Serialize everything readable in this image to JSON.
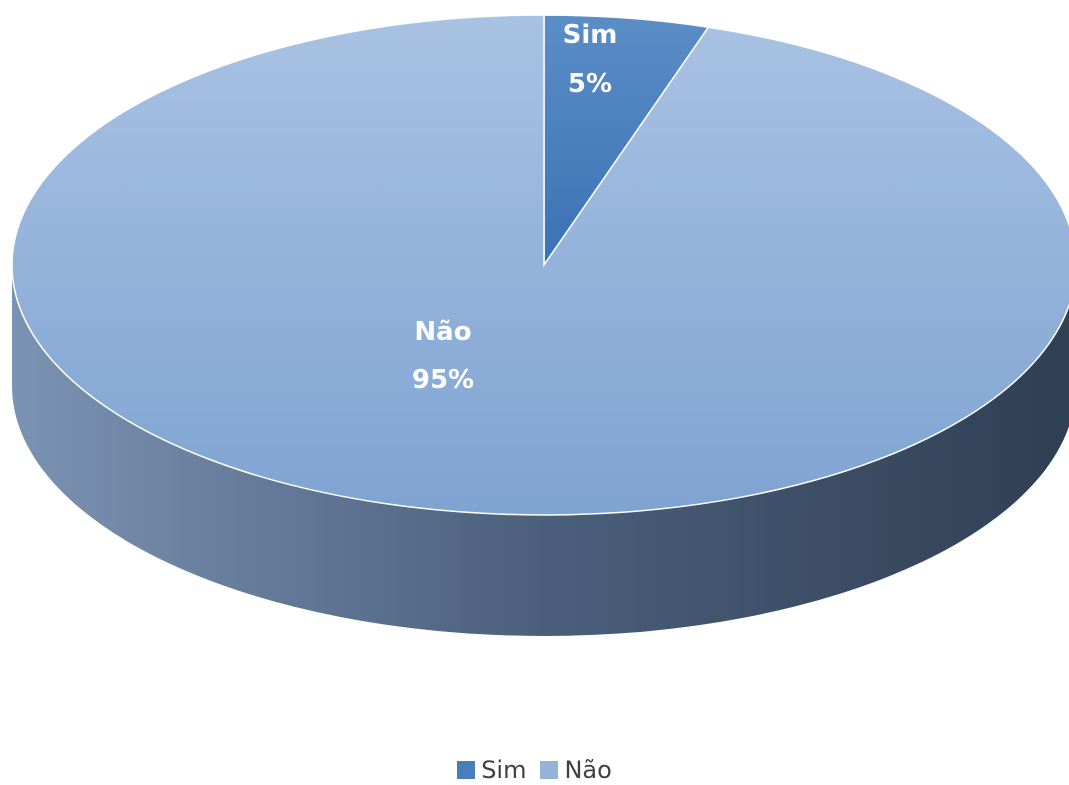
{
  "chart_data": {
    "type": "pie",
    "style": "3d",
    "title": "",
    "slices": [
      {
        "name": "Sim",
        "value": 5,
        "label": "5%",
        "color": "#4a7ebb"
      },
      {
        "name": "Não",
        "value": 95,
        "label": "95%",
        "color": "#95b3d7"
      }
    ],
    "legend_position": "bottom",
    "colors": {
      "side_dark": "#2f3e52",
      "side_light": "#7b93b3"
    }
  }
}
